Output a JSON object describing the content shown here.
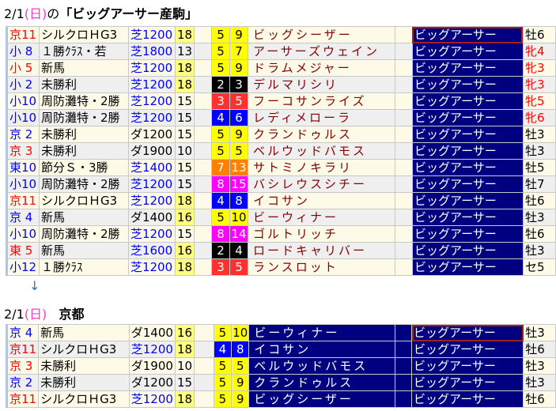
{
  "header": {
    "date": "2/1",
    "day": "(日)",
    "suffix": "の",
    "title": "「ビッグアーサー産駒」"
  },
  "arrow": "↓",
  "section2": {
    "date": "2/1",
    "day": "(日)",
    "venue": "京都"
  },
  "waku_colors": {
    "1": "#ffffff",
    "2": "#000000",
    "3": "#ff3030",
    "4": "#0000ff",
    "5": "#ffff00",
    "6": "#00a000",
    "7": "#ff8000",
    "8": "#ff00ff"
  },
  "rows": [
    {
      "venue": "京11",
      "vc": "red",
      "race": "シルクロＨG3",
      "course": "芝1200",
      "count": "18",
      "waku": "5",
      "num": "9",
      "horse": "ビッグシーザー",
      "sire": "ビッグアーサー",
      "sex": "牡6"
    },
    {
      "venue": "小 8",
      "vc": "blue",
      "race": "１勝ｸﾗｽ・若",
      "course": "芝1800",
      "count": "13",
      "waku": "5",
      "num": "7",
      "horse": "アーサーズウェイン",
      "sire": "ビッグアーサー",
      "sex": "牝4"
    },
    {
      "venue": "小 5",
      "vc": "red",
      "race": "新馬",
      "course": "芝1200",
      "count": "18",
      "waku": "5",
      "num": "9",
      "horse": "ドラムメジャー",
      "sire": "ビッグアーサー",
      "sex": "牝3"
    },
    {
      "venue": "小 2",
      "vc": "blue",
      "race": "未勝利",
      "course": "芝1200",
      "count": "18",
      "waku": "2",
      "num": "3",
      "horse": "デルマリシリ",
      "sire": "ビッグアーサー",
      "sex": "牝3"
    },
    {
      "venue": "小10",
      "vc": "blue",
      "race": "周防灘特・2勝",
      "course": "芝1200",
      "count": "15",
      "waku": "3",
      "num": "5",
      "horse": "フーコサンライズ",
      "sire": "ビッグアーサー",
      "sex": "牝5"
    },
    {
      "venue": "小10",
      "vc": "blue",
      "race": "周防灘特・2勝",
      "course": "芝1200",
      "count": "15",
      "waku": "4",
      "num": "6",
      "horse": "レディメローラ",
      "sire": "ビッグアーサー",
      "sex": "牝6"
    },
    {
      "venue": "京 2",
      "vc": "blue",
      "race": "未勝利",
      "course": "ダ1200",
      "count": "15",
      "waku": "5",
      "num": "9",
      "horse": "クランドゥルス",
      "sire": "ビッグアーサー",
      "sex": "牡3"
    },
    {
      "venue": "京 3",
      "vc": "red",
      "race": "未勝利",
      "course": "ダ1900",
      "count": "10",
      "waku": "5",
      "num": "5",
      "horse": "ベルウッドバモス",
      "sire": "ビッグアーサー",
      "sex": "牡3"
    },
    {
      "venue": "東10",
      "vc": "blue",
      "race": "節分Ｓ・3勝",
      "course": "芝1400",
      "count": "15",
      "waku": "7",
      "num": "13",
      "horse": "サトミノキラリ",
      "sire": "ビッグアーサー",
      "sex": "牡5"
    },
    {
      "venue": "小10",
      "vc": "blue",
      "race": "周防灘特・2勝",
      "course": "芝1200",
      "count": "15",
      "waku": "8",
      "num": "15",
      "horse": "バシレウスシチー",
      "sire": "ビッグアーサー",
      "sex": "牡7"
    },
    {
      "venue": "京11",
      "vc": "red",
      "race": "シルクロＨG3",
      "course": "芝1200",
      "count": "18",
      "waku": "4",
      "num": "8",
      "horse": "イコサン",
      "sire": "ビッグアーサー",
      "sex": "牡6"
    },
    {
      "venue": "京 4",
      "vc": "blue",
      "race": "新馬",
      "course": "ダ1400",
      "count": "16",
      "waku": "5",
      "num": "10",
      "horse": "ビーウィナー",
      "sire": "ビッグアーサー",
      "sex": "牡3"
    },
    {
      "venue": "小10",
      "vc": "blue",
      "race": "周防灘特・2勝",
      "course": "芝1200",
      "count": "15",
      "waku": "8",
      "num": "14",
      "horse": "ゴルトリッチ",
      "sire": "ビッグアーサー",
      "sex": "牡6"
    },
    {
      "venue": "東 5",
      "vc": "red",
      "race": "新馬",
      "course": "芝1600",
      "count": "16",
      "waku": "2",
      "num": "4",
      "horse": "ロードキャリバー",
      "sire": "ビッグアーサー",
      "sex": "牡3"
    },
    {
      "venue": "小12",
      "vc": "blue",
      "race": "１勝ｸﾗｽ",
      "course": "芝1200",
      "count": "18",
      "waku": "3",
      "num": "5",
      "horse": "ランスロット",
      "sire": "ビッグアーサー",
      "sex": "セ5"
    }
  ],
  "rows2": [
    {
      "venue": "京 4",
      "vc": "blue",
      "race": "新馬",
      "course": "ダ1400",
      "count": "16",
      "waku": "5",
      "num": "10",
      "horse": "ビーウィナー",
      "sire": "ビッグアーサー",
      "sex": "牡3"
    },
    {
      "venue": "京11",
      "vc": "red",
      "race": "シルクロＨG3",
      "course": "芝1200",
      "count": "18",
      "waku": "4",
      "num": "8",
      "horse": "イコサン",
      "sire": "ビッグアーサー",
      "sex": "牡6"
    },
    {
      "venue": "京 3",
      "vc": "red",
      "race": "未勝利",
      "course": "ダ1900",
      "count": "10",
      "waku": "5",
      "num": "5",
      "horse": "ベルウッドバモス",
      "sire": "ビッグアーサー",
      "sex": "牡3"
    },
    {
      "venue": "京 2",
      "vc": "blue",
      "race": "未勝利",
      "course": "ダ1200",
      "count": "15",
      "waku": "5",
      "num": "9",
      "horse": "クランドゥルス",
      "sire": "ビッグアーサー",
      "sex": "牡3"
    },
    {
      "venue": "京11",
      "vc": "red",
      "race": "シルクロＨG3",
      "course": "芝1200",
      "count": "18",
      "waku": "5",
      "num": "9",
      "horse": "ビッグシーザー",
      "sire": "ビッグアーサー",
      "sex": "牡6"
    }
  ]
}
